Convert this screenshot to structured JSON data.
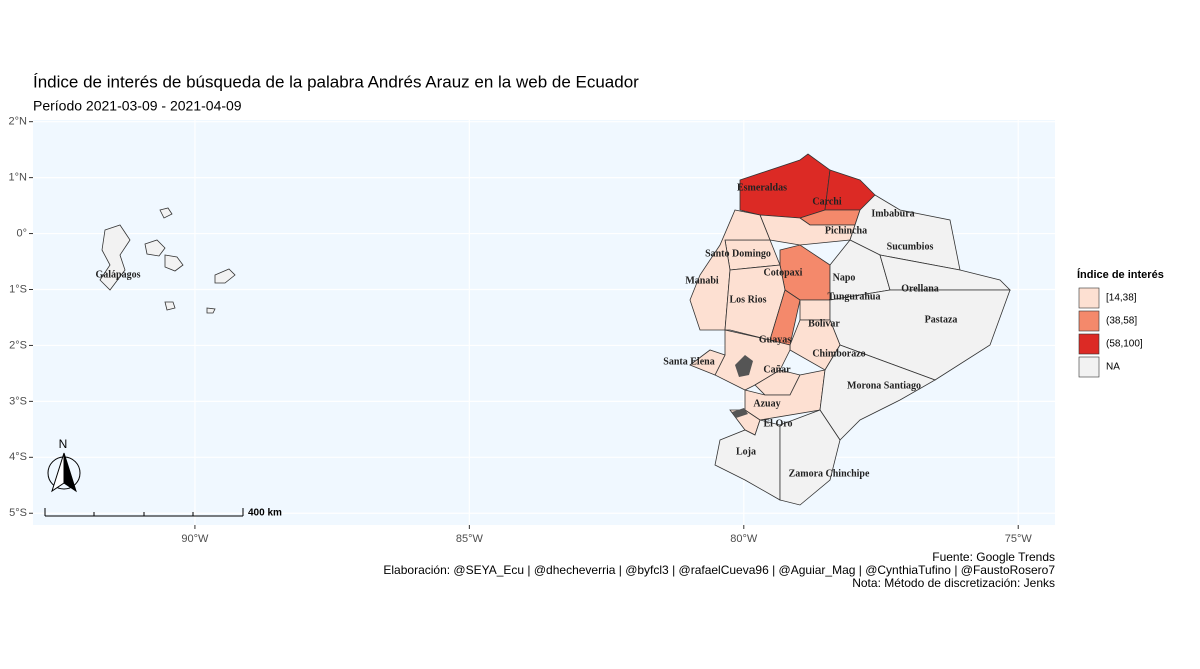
{
  "chart_data": {
    "type": "choropleth",
    "title": "Índice de interés de búsqueda de la palabra Andrés Arauz en la web de Ecuador",
    "subtitle": "Período 2021-03-09 - 2021-04-09",
    "xlim": [
      -92.95,
      -74.33
    ],
    "ylim": [
      -5.21,
      2.03
    ],
    "xticks": [
      {
        "value": -90,
        "label": "90°W"
      },
      {
        "value": -85,
        "label": "85°W"
      },
      {
        "value": -80,
        "label": "80°W"
      },
      {
        "value": -75,
        "label": "75°W"
      }
    ],
    "yticks": [
      {
        "value": 2,
        "label": "2°N"
      },
      {
        "value": 1,
        "label": "1°N"
      },
      {
        "value": 0,
        "label": "0°"
      },
      {
        "value": -1,
        "label": "1°S"
      },
      {
        "value": -2,
        "label": "2°S"
      },
      {
        "value": -3,
        "label": "3°S"
      },
      {
        "value": -4,
        "label": "4°S"
      },
      {
        "value": -5,
        "label": "5°S"
      }
    ],
    "grid": true,
    "legend": {
      "title": "Índice de interés",
      "items": [
        {
          "label": "[14,38]",
          "color": "#fde0d2"
        },
        {
          "label": "(38,58]",
          "color": "#f4896b"
        },
        {
          "label": "(58,100]",
          "color": "#dc2a25"
        },
        {
          "label": "NA",
          "color": "#f2f2f2"
        }
      ]
    },
    "regions": [
      {
        "name": "Esmeraldas",
        "class": "(58,100]"
      },
      {
        "name": "Carchi",
        "class": "(58,100]"
      },
      {
        "name": "Imbabura",
        "class": "(38,58]"
      },
      {
        "name": "Pichincha",
        "class": "[14,38]"
      },
      {
        "name": "Sucumbios",
        "class": "NA"
      },
      {
        "name": "Santo Domingo",
        "class": "[14,38]"
      },
      {
        "name": "Manabi",
        "class": "[14,38]"
      },
      {
        "name": "Cotopaxi",
        "class": "(38,58]"
      },
      {
        "name": "Napo",
        "class": "NA"
      },
      {
        "name": "Orellana",
        "class": "NA"
      },
      {
        "name": "Los Rios",
        "class": "[14,38]"
      },
      {
        "name": "Bolivar",
        "class": "(38,58]"
      },
      {
        "name": "Tungurahua",
        "class": "[14,38]"
      },
      {
        "name": "Pastaza",
        "class": "NA"
      },
      {
        "name": "Chimborazo",
        "class": "[14,38]"
      },
      {
        "name": "Guayas",
        "class": "[14,38]"
      },
      {
        "name": "Santa Elena",
        "class": "[14,38]"
      },
      {
        "name": "Cañar",
        "class": "[14,38]"
      },
      {
        "name": "Azuay",
        "class": "[14,38]"
      },
      {
        "name": "Morona Santiago",
        "class": "NA"
      },
      {
        "name": "El Oro",
        "class": "[14,38]"
      },
      {
        "name": "Loja",
        "class": "NA"
      },
      {
        "name": "Zamora Chinchipe",
        "class": "NA"
      },
      {
        "name": "Galápagos",
        "class": "NA"
      }
    ],
    "scale_label": "400 km",
    "north_label": "N",
    "caption": [
      "Fuente: Google Trends",
      "Elaboración:  @SEYA_Ecu | @dhecheverria | @byfcl3 | @rafaelCueva96 | @Aguiar_Mag | @CynthiaTufino | @FaustoRosero7",
      "Nota: Método de discretización: Jenks"
    ]
  }
}
